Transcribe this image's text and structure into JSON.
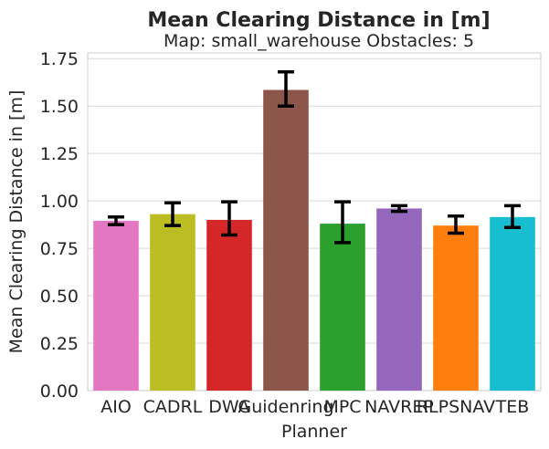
{
  "chart_data": {
    "type": "bar",
    "title": "Mean Clearing Distance in [m]",
    "subtitle": "Map: small_warehouse Obstacles: 5",
    "xlabel": "Planner",
    "ylabel": "Mean Clearing Distance in [m]",
    "ylim": [
      0,
      1.78
    ],
    "yticks": [
      "0.00",
      "0.25",
      "0.50",
      "0.75",
      "1.00",
      "1.25",
      "1.50",
      "1.75"
    ],
    "grid": "horizontal",
    "categories": [
      "AIO",
      "CADRL",
      "DWA",
      "Guidenring",
      "MPC",
      "NAVREP",
      "RLPSNAV",
      "TEB"
    ],
    "values": [
      0.895,
      0.93,
      0.9,
      1.585,
      0.88,
      0.96,
      0.87,
      0.915
    ],
    "error_low": [
      0.875,
      0.87,
      0.82,
      1.5,
      0.78,
      0.945,
      0.83,
      0.86
    ],
    "error_high": [
      0.915,
      0.99,
      0.995,
      1.68,
      0.995,
      0.975,
      0.92,
      0.975
    ],
    "colors": [
      "#e377c2",
      "#bcbd22",
      "#d62728",
      "#8c564b",
      "#2ca02c",
      "#9467bd",
      "#ff7f0e",
      "#17becf"
    ]
  }
}
